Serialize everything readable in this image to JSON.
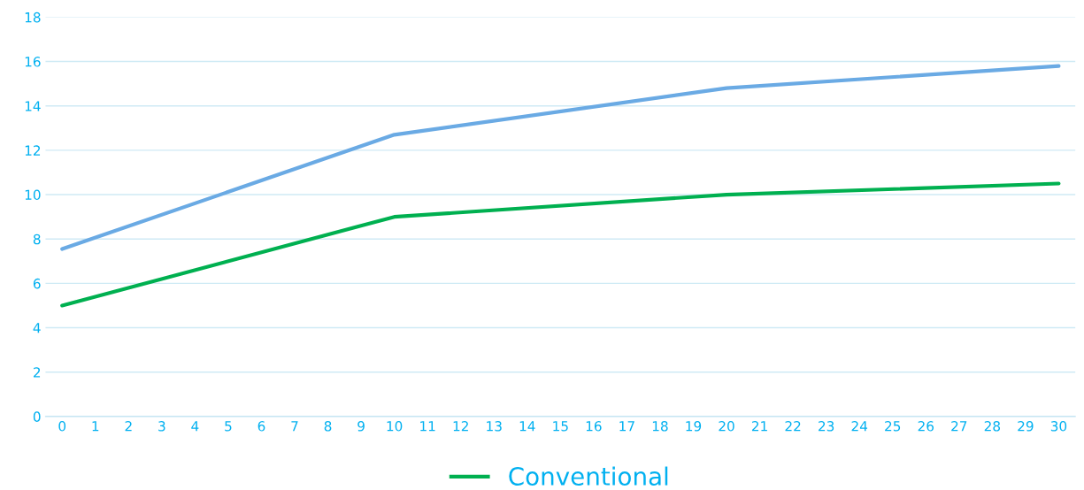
{
  "chart_data": {
    "type": "line",
    "x": [
      0,
      10,
      20,
      30
    ],
    "series": [
      {
        "name": "Conventional",
        "color": "#00b050",
        "values": [
          5,
          9,
          10,
          10.5
        ]
      },
      {
        "color": "#6aaae4",
        "values": [
          7.55,
          12.7,
          14.8,
          15.8
        ]
      }
    ],
    "xlim": [
      -0.5,
      30.5
    ],
    "xticks": [
      0,
      1,
      2,
      3,
      4,
      5,
      6,
      7,
      8,
      9,
      10,
      11,
      12,
      13,
      14,
      15,
      16,
      17,
      18,
      19,
      20,
      21,
      22,
      23,
      24,
      25,
      26,
      27,
      28,
      29,
      30
    ],
    "ylim": [
      0,
      18
    ],
    "yticks": [
      0,
      2,
      4,
      6,
      8,
      10,
      12,
      14,
      16,
      18
    ],
    "grid": "y",
    "legend": "bottom",
    "marker": "none",
    "line_style": "solid"
  }
}
